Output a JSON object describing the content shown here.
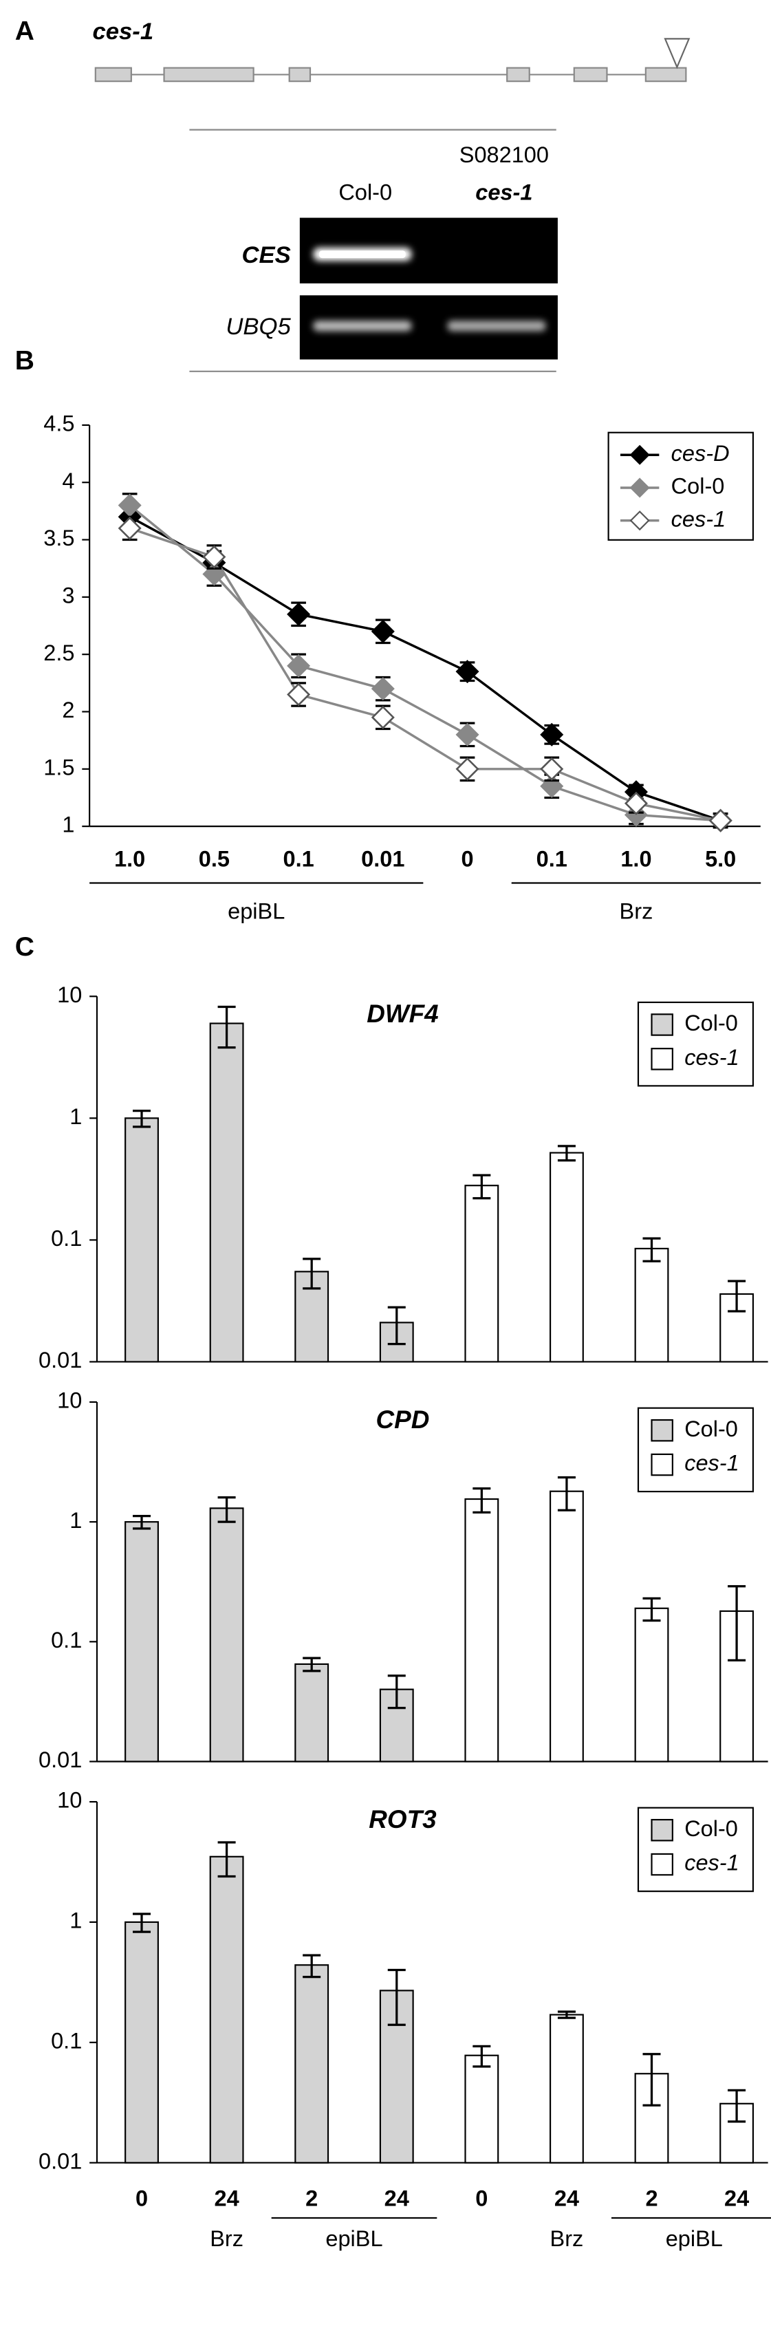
{
  "panel_a": {
    "panel": "A",
    "gene": "ces-1",
    "line_label": "S082100",
    "lanes": [
      "Col-0",
      "ces-1"
    ],
    "rows": [
      "CES",
      "UBQ5"
    ]
  },
  "chart_data": [
    {
      "type": "line",
      "panel": "B",
      "categories": [
        "1.0",
        "0.5",
        "0.1",
        "0.01",
        "0",
        "0.1",
        "1.0",
        "5.0"
      ],
      "groups": [
        {
          "label": "epiBL",
          "start": 0,
          "end": 3
        },
        {
          "label": "Brz",
          "start": 5,
          "end": 7
        }
      ],
      "ylim": [
        1,
        4.5
      ],
      "yticks": [
        1,
        1.5,
        2,
        2.5,
        3,
        3.5,
        4,
        4.5
      ],
      "legend": "top-right",
      "series": [
        {
          "name": "ces-D",
          "italic": true,
          "color": "#000000",
          "line_color": "#000000",
          "values": [
            3.7,
            3.3,
            2.85,
            2.7,
            2.35,
            1.8,
            1.3,
            1.05
          ],
          "errors": [
            0.1,
            0.1,
            0.1,
            0.1,
            0.08,
            0.08,
            0.06,
            0.06
          ]
        },
        {
          "name": "Col-0",
          "italic": false,
          "color": "#888888",
          "line_color": "#888888",
          "values": [
            3.8,
            3.2,
            2.4,
            2.2,
            1.8,
            1.35,
            1.1,
            1.05
          ],
          "errors": [
            0.1,
            0.1,
            0.1,
            0.1,
            0.1,
            0.1,
            0.08,
            0.06
          ]
        },
        {
          "name": "ces-1",
          "italic": true,
          "color": "#ffffff",
          "line_color": "#888888",
          "values": [
            3.6,
            3.35,
            2.15,
            1.95,
            1.5,
            1.5,
            1.2,
            1.05
          ],
          "errors": [
            0.1,
            0.1,
            0.1,
            0.1,
            0.1,
            0.1,
            0.08,
            0.06
          ]
        }
      ]
    },
    {
      "type": "bar",
      "panel": "C",
      "title": "DWF4",
      "log_scale": true,
      "categories": [
        null,
        null,
        null,
        null,
        null,
        null,
        null,
        null
      ],
      "ylim": [
        0.01,
        10
      ],
      "yticks": [
        0.01,
        0.1,
        1,
        10
      ],
      "legend": "top-right",
      "series": [
        {
          "name": "Col-0",
          "italic": false,
          "color": "#d3d3d3",
          "values": [
            1.0,
            6.0,
            0.055,
            0.021,
            null,
            null,
            null,
            null
          ],
          "errors": [
            0.15,
            2.2,
            0.015,
            0.007,
            null,
            null,
            null,
            null
          ]
        },
        {
          "name": "ces-1",
          "italic": true,
          "color": "#ffffff",
          "values": [
            null,
            null,
            null,
            null,
            0.28,
            0.52,
            0.085,
            0.036
          ],
          "errors": [
            null,
            null,
            null,
            null,
            0.06,
            0.07,
            0.018,
            0.01
          ]
        }
      ]
    },
    {
      "type": "bar",
      "title": "CPD",
      "log_scale": true,
      "categories": [
        null,
        null,
        null,
        null,
        null,
        null,
        null,
        null
      ],
      "ylim": [
        0.01,
        10
      ],
      "yticks": [
        0.01,
        0.1,
        1,
        10
      ],
      "legend": "top-right",
      "series": [
        {
          "name": "Col-0",
          "italic": false,
          "color": "#d3d3d3",
          "values": [
            1.0,
            1.3,
            0.065,
            0.04,
            null,
            null,
            null,
            null
          ],
          "errors": [
            0.12,
            0.3,
            0.008,
            0.012,
            null,
            null,
            null,
            null
          ]
        },
        {
          "name": "ces-1",
          "italic": true,
          "color": "#ffffff",
          "values": [
            null,
            null,
            null,
            null,
            1.55,
            1.8,
            0.19,
            0.18
          ],
          "errors": [
            null,
            null,
            null,
            null,
            0.35,
            0.55,
            0.04,
            0.11
          ]
        }
      ]
    },
    {
      "type": "bar",
      "title": "ROT3",
      "log_scale": true,
      "categories": [
        "0",
        "24",
        "2",
        "24",
        "0",
        "24",
        "2",
        "24"
      ],
      "groups": [
        {
          "label": "Brz",
          "start": 1,
          "end": 1
        },
        {
          "label": "epiBL",
          "start": 2,
          "end": 3
        },
        {
          "label": "Brz",
          "start": 5,
          "end": 5
        },
        {
          "label": "epiBL",
          "start": 6,
          "end": 7
        }
      ],
      "ylim": [
        0.01,
        10
      ],
      "yticks": [
        0.01,
        0.1,
        1,
        10
      ],
      "legend": "top-right",
      "series": [
        {
          "name": "Col-0",
          "italic": false,
          "color": "#d3d3d3",
          "values": [
            1.0,
            3.5,
            0.44,
            0.27,
            null,
            null,
            null,
            null
          ],
          "errors": [
            0.17,
            1.1,
            0.09,
            0.13,
            null,
            null,
            null,
            null
          ]
        },
        {
          "name": "ces-1",
          "italic": true,
          "color": "#ffffff",
          "values": [
            null,
            null,
            null,
            null,
            0.078,
            0.17,
            0.055,
            0.031
          ],
          "errors": [
            null,
            null,
            null,
            null,
            0.015,
            0.01,
            0.025,
            0.009
          ]
        }
      ]
    }
  ]
}
